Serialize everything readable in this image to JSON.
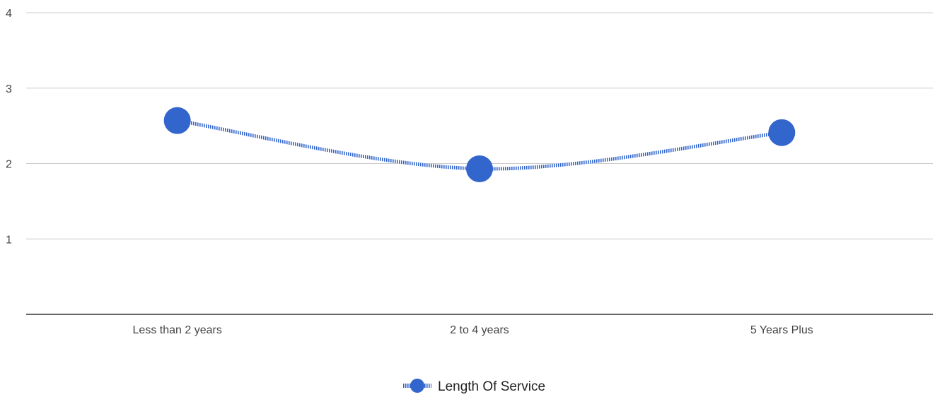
{
  "chart_data": {
    "type": "line",
    "categories": [
      "Less than 2 years",
      "2 to 4 years",
      "5 Years Plus"
    ],
    "series": [
      {
        "name": "Length Of Service",
        "values": [
          2.57,
          1.93,
          2.41
        ],
        "color": "#3366cc"
      }
    ],
    "ylim": [
      0,
      4
    ],
    "yticks": [
      "1",
      "2",
      "3",
      "4"
    ],
    "title": "",
    "xlabel": "",
    "ylabel": "",
    "grid": true,
    "legend_position": "bottom",
    "gridline_color": "#cccccc",
    "axis_color": "#333333"
  }
}
